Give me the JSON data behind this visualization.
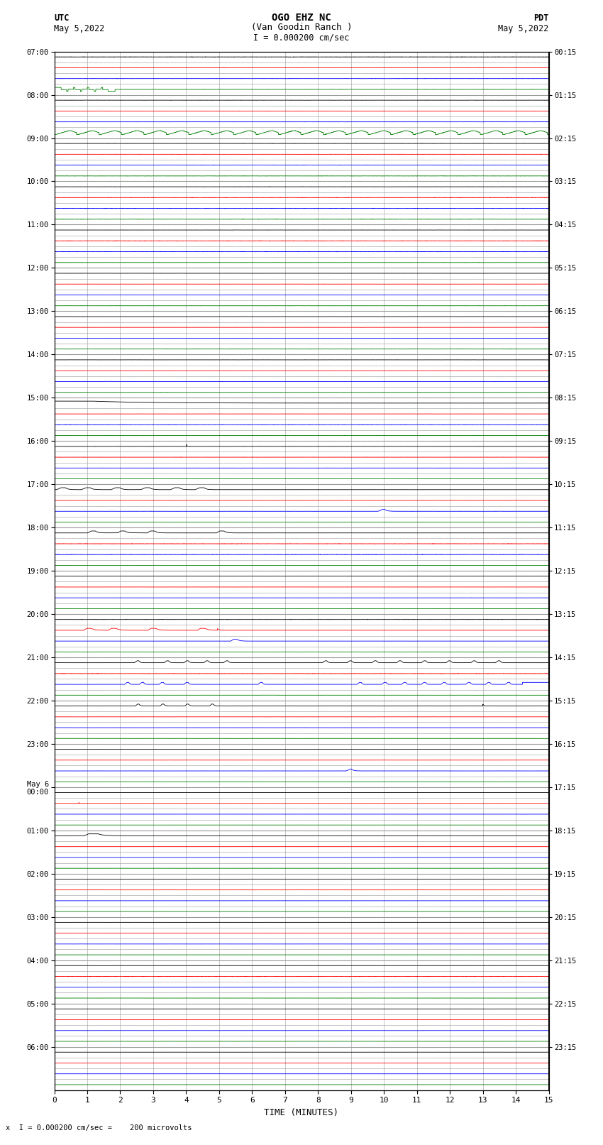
{
  "title_line1": "OGO EHZ NC",
  "title_line2": "(Van Goodin Ranch )",
  "title_scale": "I = 0.000200 cm/sec",
  "left_label_top": "UTC",
  "left_label_date": "May 5,2022",
  "right_label_top": "PDT",
  "right_label_date": "May 5,2022",
  "bottom_label": "TIME (MINUTES)",
  "footer_text": "x  I = 0.000200 cm/sec =    200 microvolts",
  "utc_hours": [
    "07:00",
    "08:00",
    "09:00",
    "10:00",
    "11:00",
    "12:00",
    "13:00",
    "14:00",
    "15:00",
    "16:00",
    "17:00",
    "18:00",
    "19:00",
    "20:00",
    "21:00",
    "22:00",
    "23:00",
    "May 6\n00:00",
    "01:00",
    "02:00",
    "03:00",
    "04:00",
    "05:00",
    "06:00"
  ],
  "pdt_hours": [
    "00:15",
    "01:15",
    "02:15",
    "03:15",
    "04:15",
    "05:15",
    "06:15",
    "07:15",
    "08:15",
    "09:15",
    "10:15",
    "11:15",
    "12:15",
    "13:15",
    "14:15",
    "15:15",
    "16:15",
    "17:15",
    "18:15",
    "19:15",
    "20:15",
    "21:15",
    "22:15",
    "23:15"
  ],
  "n_rows": 96,
  "n_minutes": 15,
  "bg_color": "#ffffff",
  "grid_color": "#999999",
  "colors_cycle": [
    "#000000",
    "#ff0000",
    "#0000ff",
    "#008000"
  ],
  "figsize": [
    8.5,
    16.13
  ],
  "dpi": 100,
  "noise_base": 0.04,
  "amp_scale": 0.38
}
